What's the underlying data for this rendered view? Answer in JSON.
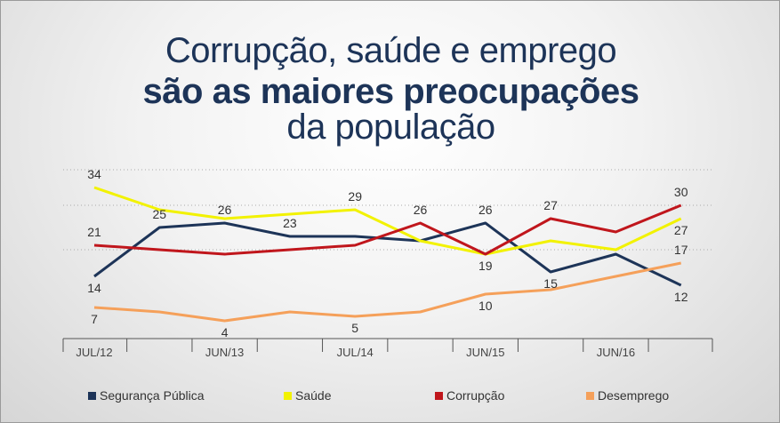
{
  "title": {
    "line1": "Corrupção, saúde e emprego",
    "line2": "são as maiores preocupações",
    "line3": "da população"
  },
  "chart_data": {
    "type": "line",
    "title": "Corrupção, saúde e emprego são as maiores preocupações da população",
    "categories": [
      "JUL/12",
      "",
      "JUN/13",
      "",
      "JUL/14",
      "",
      "JUN/15",
      "",
      "JUN/16",
      ""
    ],
    "x_ticks": [
      "JUL/12",
      "JUN/13",
      "JUL/14",
      "JUN/15",
      "JUN/16"
    ],
    "ylim": [
      0,
      38
    ],
    "gridlines": [
      30,
      20
    ],
    "series": [
      {
        "name": "Segurança Pública",
        "color": "#1d3458",
        "values": [
          14,
          25,
          26,
          23,
          23,
          22,
          26,
          15,
          19,
          12
        ],
        "labels": [
          "14",
          "25",
          "26",
          "23",
          "",
          "",
          "26",
          "15",
          "",
          "12"
        ]
      },
      {
        "name": "Saúde",
        "color": "#f2f200",
        "values": [
          34,
          29,
          27,
          28,
          29,
          22,
          19,
          22,
          20,
          27
        ],
        "labels": [
          "34",
          "",
          "",
          "",
          "29",
          "",
          "19",
          "",
          "",
          "27"
        ]
      },
      {
        "name": "Corrupção",
        "color": "#c0161c",
        "values": [
          21,
          20,
          19,
          20,
          21,
          26,
          19,
          27,
          24,
          30
        ],
        "labels": [
          "21",
          "",
          "",
          "",
          "",
          "26",
          "",
          "27",
          "",
          "30"
        ]
      },
      {
        "name": "Desemprego",
        "color": "#f5a05a",
        "values": [
          7,
          6,
          4,
          6,
          5,
          6,
          10,
          11,
          14,
          17
        ],
        "labels": [
          "7",
          "",
          "4",
          "",
          "5",
          "",
          "10",
          "",
          "",
          "17"
        ]
      }
    ]
  }
}
